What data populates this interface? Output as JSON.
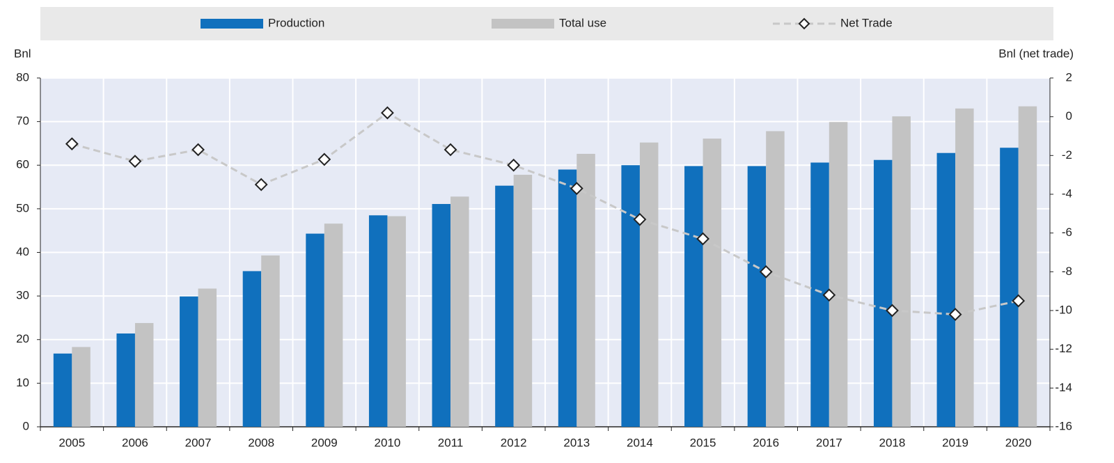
{
  "chart_data": {
    "type": "bar+line",
    "y_label": "Bnl",
    "y2_label": "Bnl (net trade)",
    "categories": [
      "2005",
      "2006",
      "2007",
      "2008",
      "2009",
      "2010",
      "2011",
      "2012",
      "2013",
      "2014",
      "2015",
      "2016",
      "2017",
      "2018",
      "2019",
      "2020"
    ],
    "series": [
      {
        "name": "Production",
        "type": "bar",
        "color": "#1070bd",
        "values": [
          16.8,
          21.4,
          29.9,
          35.7,
          44.3,
          48.5,
          51.1,
          55.3,
          59.0,
          60.0,
          59.8,
          59.8,
          60.6,
          61.2,
          62.8,
          64.0
        ]
      },
      {
        "name": "Total use",
        "type": "bar",
        "color": "#c3c3c3",
        "values": [
          18.3,
          23.8,
          31.7,
          39.3,
          46.6,
          48.3,
          52.8,
          57.8,
          62.6,
          65.2,
          66.1,
          67.8,
          69.9,
          71.2,
          73.0,
          73.5
        ]
      },
      {
        "name": "Net Trade",
        "type": "line",
        "axis": "y2",
        "color": "#c8c8c8",
        "values": [
          -1.4,
          -2.3,
          -1.7,
          -3.5,
          -2.2,
          0.2,
          -1.7,
          -2.5,
          -3.7,
          -5.3,
          -6.3,
          -8.0,
          -9.2,
          -10.0,
          -10.2,
          -9.5
        ]
      }
    ],
    "ylim": [
      0,
      80
    ],
    "yticks": [
      0,
      10,
      20,
      30,
      40,
      50,
      60,
      70,
      80
    ],
    "y2lim": [
      -16,
      2
    ],
    "y2ticks": [
      -16,
      -14,
      -12,
      -10,
      -8,
      -6,
      -4,
      -2,
      0,
      2
    ],
    "grid": true,
    "legend": "top"
  }
}
